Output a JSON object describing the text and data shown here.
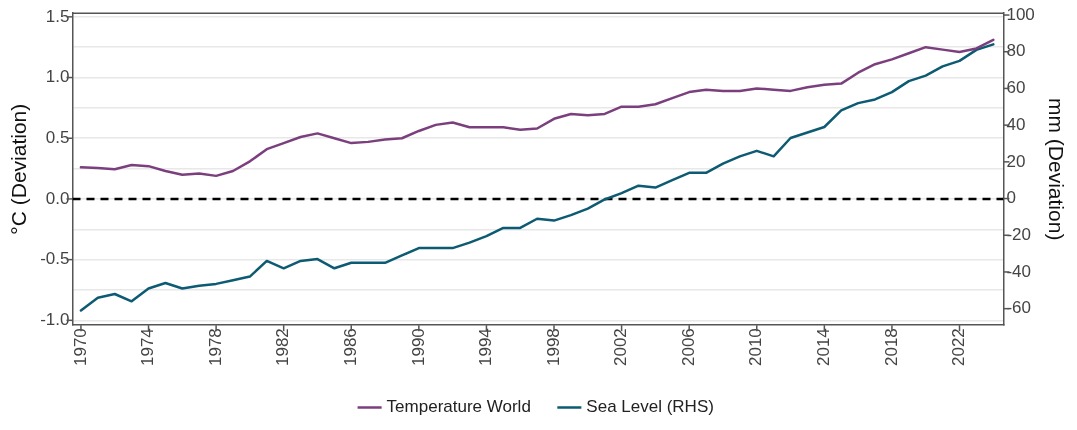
{
  "chart_data": {
    "type": "line",
    "ylabel": "°C (Deviation)",
    "y2label": "mm (Deviation)",
    "x": [
      1970,
      1971,
      1972,
      1973,
      1974,
      1975,
      1976,
      1977,
      1978,
      1979,
      1980,
      1981,
      1982,
      1983,
      1984,
      1985,
      1986,
      1987,
      1988,
      1989,
      1990,
      1991,
      1992,
      1993,
      1994,
      1995,
      1996,
      1997,
      1998,
      1999,
      2000,
      2001,
      2002,
      2003,
      2004,
      2005,
      2006,
      2007,
      2008,
      2009,
      2010,
      2011,
      2012,
      2013,
      2014,
      2015,
      2016,
      2017,
      2018,
      2019,
      2020,
      2021,
      2022,
      2023,
      2024
    ],
    "series": [
      {
        "name": "Temperature World",
        "color": "#7b3f7e",
        "values": [
          0.26,
          0.255,
          0.245,
          0.28,
          0.27,
          0.23,
          0.2,
          0.21,
          0.19,
          0.23,
          0.31,
          0.41,
          0.46,
          0.51,
          0.54,
          0.5,
          0.46,
          0.47,
          0.49,
          0.5,
          0.56,
          0.61,
          0.63,
          0.59,
          0.59,
          0.59,
          0.57,
          0.58,
          0.66,
          0.7,
          0.69,
          0.7,
          0.76,
          0.76,
          0.78,
          0.83,
          0.88,
          0.9,
          0.89,
          0.89,
          0.91,
          0.9,
          0.89,
          0.92,
          0.94,
          0.95,
          1.04,
          1.11,
          1.15,
          1.2,
          1.25,
          1.23,
          1.21,
          1.24,
          1.31
        ]
      },
      {
        "name": "Sea Level (RHS)",
        "color": "#0d5a73",
        "axis": "y2",
        "values": [
          -61,
          -54,
          -52,
          -56,
          -49,
          -46,
          -49,
          -47.5,
          -46.5,
          -44.5,
          -42.5,
          -34,
          -38,
          -34,
          -33,
          -38,
          -35,
          -35,
          -35,
          -31,
          -27,
          -27,
          -27,
          -24,
          -20.5,
          -16,
          -16,
          -11,
          -12,
          -9,
          -5.5,
          -0.5,
          3,
          7,
          6,
          10,
          14,
          14,
          19,
          23,
          26,
          23,
          33,
          36,
          39,
          48,
          52,
          54,
          58,
          64,
          67,
          72,
          75,
          81,
          84
        ]
      }
    ],
    "xlim": [
      1969.5,
      2024.6
    ],
    "xticks": [
      1970,
      1974,
      1978,
      1982,
      1986,
      1990,
      1994,
      1998,
      2002,
      2006,
      2010,
      2014,
      2018,
      2022
    ],
    "ylim": [
      -1.04,
      1.53
    ],
    "yticks": [
      {
        "value": -1,
        "label": "-1.0"
      },
      {
        "value": -0.75,
        "label": null
      },
      {
        "value": -0.5,
        "label": "-0.5"
      },
      {
        "value": -0.25,
        "label": null
      },
      {
        "value": 0,
        "label": "0.0"
      },
      {
        "value": 0.25,
        "label": null
      },
      {
        "value": 0.5,
        "label": "0.5"
      },
      {
        "value": 0.75,
        "label": null
      },
      {
        "value": 1,
        "label": "1.0"
      },
      {
        "value": 1.25,
        "label": null
      },
      {
        "value": 1.5,
        "label": "1.5"
      }
    ],
    "y2lim": [
      -69,
      101
    ],
    "y2ticks": [
      -60,
      -40,
      -20,
      0,
      20,
      40,
      60,
      80,
      100
    ],
    "ref_lines": [
      {
        "axis": "y",
        "value": 0,
        "color": "#000000",
        "line_style": "dashed"
      }
    ],
    "grid": "y",
    "legend": "bottom",
    "marker": "none",
    "line_style": "solid"
  }
}
